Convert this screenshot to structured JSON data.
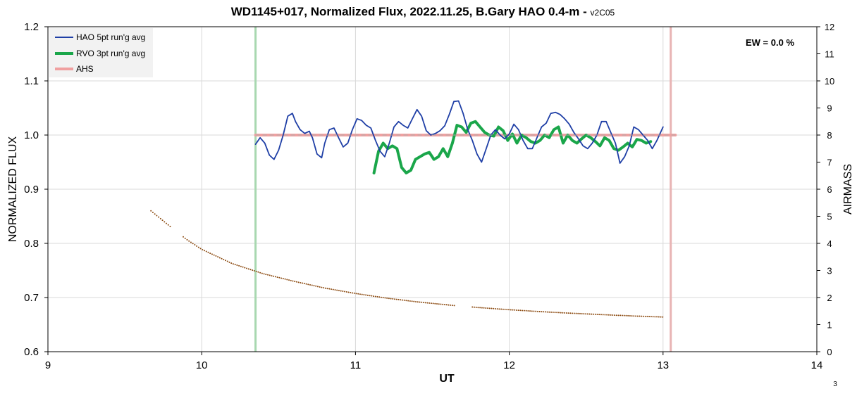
{
  "chart_data": {
    "type": "line",
    "title": "WD1145+017, Normalized Flux, 2022.11.25, B.Gary HAO 0.4-m - ",
    "title_version": "v2C05",
    "xlabel": "UT",
    "ylabel": "NORMALIZED FLUX",
    "y2label": "AIRMASS",
    "xlim": [
      9,
      14
    ],
    "ylim": [
      0.6,
      1.2
    ],
    "y2lim": [
      0,
      12
    ],
    "x_ticks": [
      "9",
      "10",
      "11",
      "12",
      "13",
      "14"
    ],
    "y_ticks": [
      "0.6",
      "0.7",
      "0.8",
      "0.9",
      "1.0",
      "1.1",
      "1.2"
    ],
    "y2_ticks": [
      "0",
      "1",
      "2",
      "3",
      "4",
      "5",
      "6",
      "7",
      "8",
      "9",
      "10",
      "11",
      "12"
    ],
    "grid": true,
    "legend_position": "top-left",
    "annotation": "EW = 0.0 %",
    "page_number": "3",
    "vertical_markers": [
      {
        "x": 10.35,
        "color": "#a8d8b0"
      },
      {
        "x": 13.05,
        "color": "#e8b4b4"
      }
    ],
    "series": [
      {
        "name": "HAO 5pt run'g avg",
        "color": "#1f3fa6",
        "x": [
          10.35,
          10.38,
          10.41,
          10.44,
          10.47,
          10.5,
          10.53,
          10.56,
          10.59,
          10.61,
          10.64,
          10.67,
          10.7,
          10.72,
          10.75,
          10.78,
          10.8,
          10.83,
          10.86,
          10.89,
          10.92,
          10.95,
          10.98,
          11.01,
          11.04,
          11.07,
          11.1,
          11.13,
          11.16,
          11.19,
          11.22,
          11.25,
          11.28,
          11.31,
          11.34,
          11.37,
          11.4,
          11.43,
          11.46,
          11.49,
          11.52,
          11.55,
          11.58,
          11.61,
          11.64,
          11.67,
          11.7,
          11.73,
          11.76,
          11.79,
          11.82,
          11.85,
          11.88,
          11.91,
          11.94,
          11.97,
          12.0,
          12.03,
          12.06,
          12.09,
          12.12,
          12.15,
          12.18,
          12.21,
          12.24,
          12.27,
          12.3,
          12.33,
          12.36,
          12.39,
          12.42,
          12.45,
          12.48,
          12.51,
          12.54,
          12.57,
          12.6,
          12.63,
          12.66,
          12.69,
          12.72,
          12.75,
          12.78,
          12.81,
          12.84,
          12.87,
          12.9,
          12.93,
          12.96,
          13.0
        ],
        "y": [
          0.983,
          0.995,
          0.985,
          0.963,
          0.955,
          0.972,
          1.0,
          1.035,
          1.04,
          1.025,
          1.01,
          1.003,
          1.007,
          0.995,
          0.965,
          0.958,
          0.985,
          1.01,
          1.013,
          0.995,
          0.978,
          0.985,
          1.01,
          1.03,
          1.027,
          1.018,
          1.013,
          0.99,
          0.97,
          0.96,
          0.985,
          1.015,
          1.025,
          1.018,
          1.013,
          1.03,
          1.047,
          1.035,
          1.008,
          1.0,
          1.003,
          1.008,
          1.017,
          1.038,
          1.062,
          1.063,
          1.04,
          1.01,
          0.99,
          0.965,
          0.95,
          0.975,
          1.0,
          1.01,
          1.0,
          0.993,
          1.002,
          1.02,
          1.01,
          0.99,
          0.975,
          0.975,
          0.995,
          1.015,
          1.022,
          1.04,
          1.042,
          1.038,
          1.03,
          1.02,
          1.005,
          0.993,
          0.98,
          0.975,
          0.985,
          1.0,
          1.025,
          1.025,
          1.005,
          0.985,
          0.948,
          0.96,
          0.98,
          1.015,
          1.01,
          1.0,
          0.99,
          0.975,
          0.99,
          1.015
        ]
      },
      {
        "name": "RVO 3pt run'g avg",
        "color": "#1aa64a",
        "x": [
          11.12,
          11.15,
          11.18,
          11.21,
          11.24,
          11.27,
          11.3,
          11.33,
          11.36,
          11.39,
          11.42,
          11.45,
          11.48,
          11.51,
          11.54,
          11.57,
          11.6,
          11.63,
          11.66,
          11.69,
          11.72,
          11.75,
          11.78,
          11.81,
          11.84,
          11.87,
          11.9,
          11.93,
          11.96,
          11.99,
          12.02,
          12.05,
          12.08,
          12.11,
          12.14,
          12.17,
          12.2,
          12.23,
          12.26,
          12.29,
          12.32,
          12.35,
          12.38,
          12.41,
          12.44,
          12.47,
          12.5,
          12.53,
          12.56,
          12.59,
          12.62,
          12.65,
          12.68,
          12.71,
          12.74,
          12.77,
          12.8,
          12.83,
          12.86,
          12.89,
          12.92
        ],
        "y": [
          0.93,
          0.97,
          0.985,
          0.975,
          0.98,
          0.975,
          0.94,
          0.93,
          0.935,
          0.955,
          0.96,
          0.965,
          0.968,
          0.955,
          0.96,
          0.975,
          0.96,
          0.985,
          1.018,
          1.015,
          1.005,
          1.022,
          1.025,
          1.015,
          1.005,
          1.0,
          0.998,
          1.015,
          1.008,
          0.99,
          1.002,
          0.985,
          1.0,
          0.995,
          0.988,
          0.985,
          0.99,
          1.0,
          0.995,
          1.01,
          1.015,
          0.985,
          1.0,
          0.99,
          0.985,
          0.993,
          1.0,
          0.995,
          0.988,
          0.98,
          0.995,
          0.99,
          0.975,
          0.972,
          0.978,
          0.985,
          0.978,
          0.992,
          0.99,
          0.985,
          0.988
        ]
      },
      {
        "name": "AHS",
        "color": "#f0a0a0",
        "x": [
          10.35,
          13.08
        ],
        "y": [
          1.0,
          1.0
        ]
      }
    ],
    "airmass_series": {
      "name": "Airmass",
      "color": "#8b4a10",
      "segments": [
        {
          "x_start": 9.67,
          "x_end": 9.8
        },
        {
          "x_start": 9.88,
          "x_end": 11.65
        },
        {
          "x_start": 11.76,
          "x_end": 13.0
        }
      ],
      "samples": [
        {
          "x": 9.67,
          "y": 5.2
        },
        {
          "x": 9.8,
          "y": 4.6
        },
        {
          "x": 9.9,
          "y": 4.15
        },
        {
          "x": 10.0,
          "y": 3.78
        },
        {
          "x": 10.2,
          "y": 3.25
        },
        {
          "x": 10.4,
          "y": 2.88
        },
        {
          "x": 10.6,
          "y": 2.6
        },
        {
          "x": 10.8,
          "y": 2.35
        },
        {
          "x": 11.0,
          "y": 2.15
        },
        {
          "x": 11.2,
          "y": 1.98
        },
        {
          "x": 11.4,
          "y": 1.84
        },
        {
          "x": 11.65,
          "y": 1.7
        },
        {
          "x": 11.8,
          "y": 1.63
        },
        {
          "x": 12.0,
          "y": 1.55
        },
        {
          "x": 12.2,
          "y": 1.48
        },
        {
          "x": 12.4,
          "y": 1.42
        },
        {
          "x": 12.6,
          "y": 1.37
        },
        {
          "x": 12.8,
          "y": 1.32
        },
        {
          "x": 13.0,
          "y": 1.28
        }
      ]
    }
  }
}
